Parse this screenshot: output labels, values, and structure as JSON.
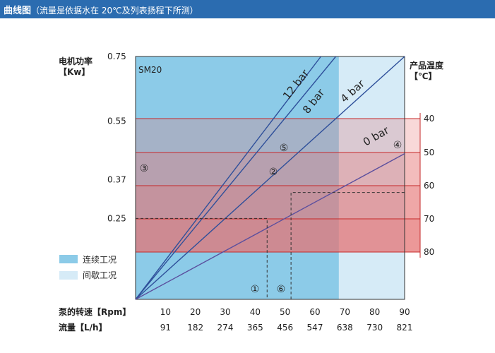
{
  "header": {
    "title": "曲线图",
    "subtitle": "（流量是依据水在 20℃及列表扬程下所测）",
    "color": "#2b6cb0"
  },
  "chart_data": {
    "type": "line",
    "model_label": "SM20",
    "left_axis": {
      "label_line1": "电机功率",
      "label_line2": "【Kw】",
      "ticks": [
        "0.75",
        "0.55",
        "0.37",
        "0.25"
      ],
      "tick_values": [
        0.75,
        0.55,
        0.37,
        0.25
      ],
      "range": [
        0,
        0.75
      ]
    },
    "right_axis": {
      "label_line1": "产品温度",
      "label_line2": "【℃】",
      "ticks": [
        "40",
        "50",
        "60",
        "70",
        "80"
      ],
      "color": "#c62828"
    },
    "x_axis": {
      "rpm_label": "泵的转速【Rpm】",
      "rpm_ticks": [
        "10",
        "20",
        "30",
        "40",
        "50",
        "60",
        "70",
        "80",
        "90"
      ],
      "flow_label": "流量【L/h】",
      "flow_ticks": [
        "91",
        "182",
        "274",
        "365",
        "456",
        "547",
        "638",
        "730",
        "821"
      ],
      "range": [
        0,
        90
      ]
    },
    "series": [
      {
        "name": "12 bar",
        "points": [
          [
            0,
            0
          ],
          [
            62,
            0.75
          ]
        ]
      },
      {
        "name": "8 bar",
        "points": [
          [
            0,
            0
          ],
          [
            67,
            0.75
          ]
        ]
      },
      {
        "name": "4 bar",
        "points": [
          [
            0,
            0
          ],
          [
            90,
            0.75
          ]
        ]
      },
      {
        "name": "0 bar",
        "points": [
          [
            0,
            0
          ],
          [
            90,
            0.45
          ]
        ]
      }
    ],
    "legend": [
      {
        "label": "连续工况",
        "color": "#8ccbe8"
      },
      {
        "label": "间歇工况",
        "color": "#cfe8f5"
      }
    ],
    "continuous_region_max_rpm": 68,
    "temperature_bands_color": "#e57373",
    "markers": [
      "①",
      "②",
      "③",
      "④",
      "⑤",
      "⑥"
    ],
    "example_paths": [
      {
        "rpm": 44,
        "power": 0.25
      },
      {
        "rpm": 52,
        "power": 0.33
      }
    ],
    "grid": false,
    "legend_position": "bottom-left"
  }
}
